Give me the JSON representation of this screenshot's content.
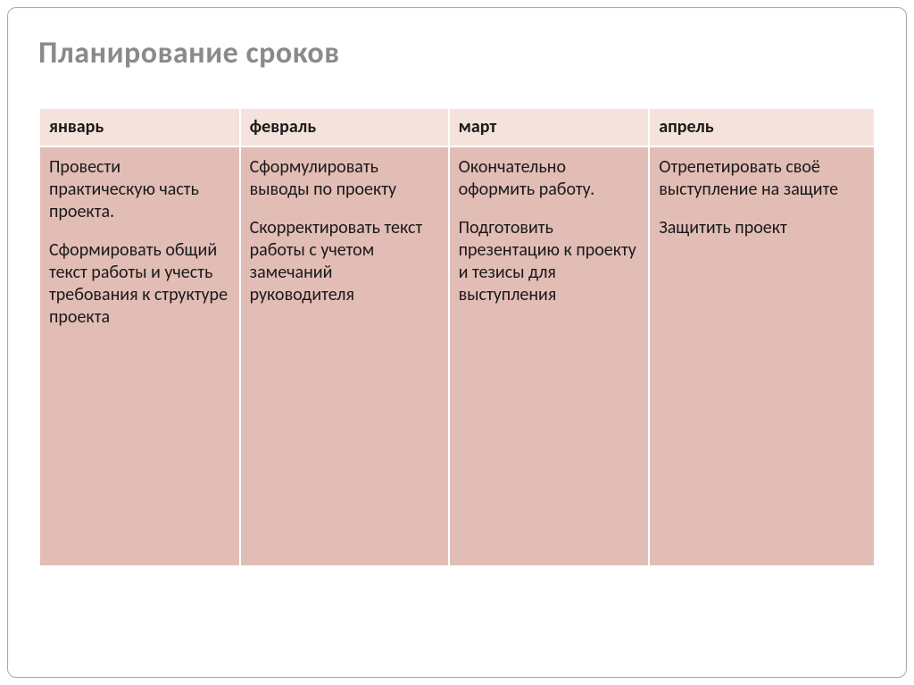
{
  "slide": {
    "title": "Планирование сроков",
    "table": {
      "type": "table",
      "header_bg": "#f6e2dc",
      "body_bg": "#e2bdb5",
      "border_color": "#ffffff",
      "text_color": "#1a1a1a",
      "title_color": "#8a8a8a",
      "title_fontsize": 34,
      "cell_fontsize": 20,
      "columns": [
        {
          "label": "январь",
          "width_pct": 24
        },
        {
          "label": "февраль",
          "width_pct": 25
        },
        {
          "label": "март",
          "width_pct": 24
        },
        {
          "label": "апрель",
          "width_pct": 27
        }
      ],
      "rows": [
        {
          "cells": [
            {
              "blocks": [
                "Провести практическую часть проекта.",
                "Сформировать общий текст работы и учесть требования к структуре проекта"
              ]
            },
            {
              "blocks": [
                "Сформулировать выводы по проекту",
                "Скорректировать текст работы с учетом замечаний руководителя"
              ]
            },
            {
              "blocks": [
                "Окончательно оформить работу.",
                "Подготовить презентацию к проекту и тезисы для выступления"
              ]
            },
            {
              "blocks": [
                "Отрепетировать своё выступление на защите",
                "Защитить проект"
              ]
            }
          ]
        }
      ]
    }
  }
}
